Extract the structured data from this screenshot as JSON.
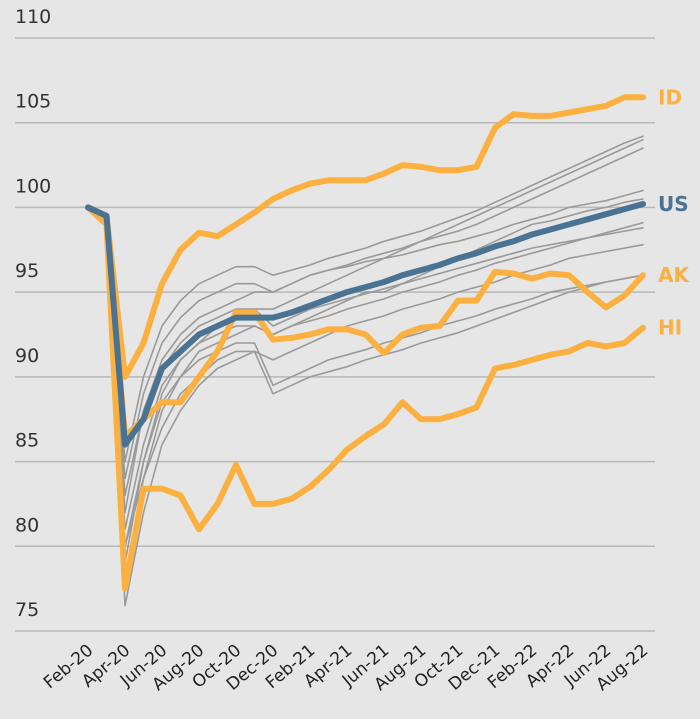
{
  "chart_data": {
    "type": "line",
    "categories": [
      "Feb-20",
      null,
      "Apr-20",
      null,
      "Jun-20",
      null,
      "Aug-20",
      null,
      "Oct-20",
      null,
      "Dec-20",
      null,
      "Feb-21",
      null,
      "Apr-21",
      null,
      "Jun-21",
      null,
      "Aug-21",
      null,
      "Oct-21",
      null,
      "Dec-21",
      null,
      "Feb-22",
      null,
      "Apr-22",
      null,
      "Jun-22",
      null,
      "Aug-22"
    ],
    "ylim": [
      75,
      110
    ],
    "yticks": [
      75,
      80,
      85,
      90,
      95,
      100,
      105,
      110
    ],
    "grid": true,
    "series": [
      {
        "color": "#9a9a9a",
        "values": [
          100,
          99,
          80,
          85,
          89,
          91,
          92,
          93,
          93.5,
          94,
          94,
          94.5,
          95,
          95.5,
          96,
          96.5,
          97,
          97.5,
          98,
          98.5,
          99,
          99.5,
          100,
          100.5,
          101,
          101.5,
          102,
          102.5,
          103,
          103.5,
          104
        ]
      },
      {
        "color": "#9a9a9a",
        "values": [
          100,
          99,
          78,
          84,
          88,
          90,
          91.5,
          92,
          92.5,
          93,
          92.5,
          93,
          93.5,
          94,
          94.5,
          95,
          95,
          95.5,
          96,
          96.5,
          97,
          97.5,
          98,
          98.5,
          99,
          99.2,
          99.5,
          99.8,
          100,
          100.3,
          100.5
        ]
      },
      {
        "color": "#9a9a9a",
        "values": [
          100,
          99,
          82,
          88,
          91,
          92.5,
          93.5,
          94,
          94.5,
          95,
          95,
          95.5,
          96,
          96.3,
          96.6,
          97,
          97.3,
          97.6,
          98,
          98.3,
          98.6,
          99,
          99.5,
          100,
          100.5,
          101,
          101.5,
          102,
          102.5,
          103,
          103.5
        ]
      },
      {
        "color": "#9a9a9a",
        "values": [
          100,
          99,
          76.5,
          82,
          86,
          88,
          89.5,
          90.5,
          91,
          91.5,
          91,
          91.5,
          92,
          92.5,
          93,
          93.3,
          93.6,
          94,
          94.3,
          94.6,
          95,
          95.3,
          95.6,
          96,
          96.3,
          96.6,
          97,
          97.2,
          97.4,
          97.6,
          97.8
        ]
      },
      {
        "color": "#9a9a9a",
        "values": [
          100,
          99.5,
          84,
          89,
          92,
          93.5,
          94.5,
          95,
          95.5,
          95.5,
          95,
          95.5,
          96,
          96.3,
          96.5,
          96.8,
          97,
          97.2,
          97.5,
          97.8,
          98,
          98.3,
          98.6,
          99,
          99.3,
          99.6,
          100,
          100.2,
          100.4,
          100.7,
          101
        ]
      },
      {
        "color": "#9a9a9a",
        "values": [
          100,
          99,
          79,
          85,
          88.5,
          90,
          91,
          91.5,
          92,
          92,
          89.5,
          90,
          90.5,
          91,
          91.3,
          91.6,
          92,
          92.3,
          92.6,
          93,
          93.3,
          93.6,
          94,
          94.3,
          94.6,
          95,
          95.2,
          95.4,
          95.6,
          95.8,
          96
        ]
      },
      {
        "color": "#9a9a9a",
        "values": [
          100,
          99.5,
          85,
          90,
          93,
          94.5,
          95.5,
          96,
          96.5,
          96.5,
          96,
          96.3,
          96.6,
          97,
          97.3,
          97.6,
          98,
          98.3,
          98.6,
          99,
          99.4,
          99.8,
          100.3,
          100.8,
          101.3,
          101.8,
          102.3,
          102.8,
          103.3,
          103.8,
          104.2
        ]
      },
      {
        "color": "#9a9a9a",
        "values": [
          100,
          99,
          81,
          86,
          89.5,
          91,
          92,
          92.5,
          93,
          93,
          92.5,
          93,
          93.3,
          93.6,
          94,
          94.3,
          94.6,
          95,
          95.3,
          95.6,
          96,
          96.3,
          96.7,
          97,
          97.3,
          97.6,
          97.9,
          98.2,
          98.5,
          98.8,
          99.1
        ]
      },
      {
        "color": "#9a9a9a",
        "values": [
          100,
          99,
          83,
          88,
          90.5,
          92,
          93,
          93.5,
          94,
          94,
          93,
          93.5,
          94,
          94.3,
          94.6,
          94.9,
          95.2,
          95.5,
          95.8,
          96.1,
          96.4,
          96.7,
          97,
          97.3,
          97.6,
          97.8,
          98,
          98.2,
          98.4,
          98.6,
          98.8
        ]
      },
      {
        "color": "#9a9a9a",
        "values": [
          100,
          99,
          80,
          84,
          87,
          89,
          90,
          91,
          91.5,
          91.5,
          89,
          89.5,
          90,
          90.3,
          90.6,
          91,
          91.3,
          91.6,
          92,
          92.3,
          92.6,
          93,
          93.4,
          93.8,
          94.2,
          94.6,
          95,
          95.3,
          95.6,
          95.8,
          96
        ]
      },
      {
        "name": "HI",
        "color": "#fbb040",
        "values": [
          100,
          99,
          77.5,
          83.4,
          83.4,
          83,
          81,
          82.5,
          84.8,
          82.5,
          82.5,
          82.8,
          83.5,
          84.5,
          85.7,
          86.5,
          87.2,
          88.5,
          87.5,
          87.5,
          87.8,
          88.2,
          90.5,
          90.7,
          91,
          91.3,
          91.5,
          92,
          91.8,
          92,
          92.9
        ]
      },
      {
        "name": "AK",
        "color": "#fbb040",
        "values": [
          100,
          99.5,
          86.5,
          87.5,
          88.5,
          88.5,
          90,
          91.5,
          93.8,
          93.8,
          92.2,
          92.3,
          92.5,
          92.8,
          92.8,
          92.5,
          91.4,
          92.5,
          92.9,
          93,
          94.5,
          94.5,
          96.2,
          96.1,
          95.8,
          96.1,
          96,
          95,
          94.1,
          94.8,
          96
        ]
      },
      {
        "name": "ID",
        "color": "#fbb040",
        "values": [
          100,
          99.5,
          90,
          92,
          95.5,
          97.5,
          98.5,
          98.3,
          99,
          99.7,
          100.5,
          101,
          101.4,
          101.6,
          101.6,
          101.6,
          102,
          102.5,
          102.4,
          102.2,
          102.2,
          102.4,
          104.7,
          105.5,
          105.4,
          105.4,
          105.6,
          105.8,
          106,
          106.5,
          106.5
        ]
      },
      {
        "name": "US",
        "color": "#4a7393",
        "values": [
          100,
          99.5,
          86,
          87.5,
          90.5,
          91.5,
          92.5,
          93,
          93.5,
          93.5,
          93.5,
          93.8,
          94.2,
          94.6,
          95,
          95.3,
          95.6,
          96,
          96.3,
          96.6,
          97,
          97.3,
          97.7,
          98,
          98.4,
          98.7,
          99,
          99.3,
          99.6,
          99.9,
          100.2
        ]
      }
    ]
  }
}
